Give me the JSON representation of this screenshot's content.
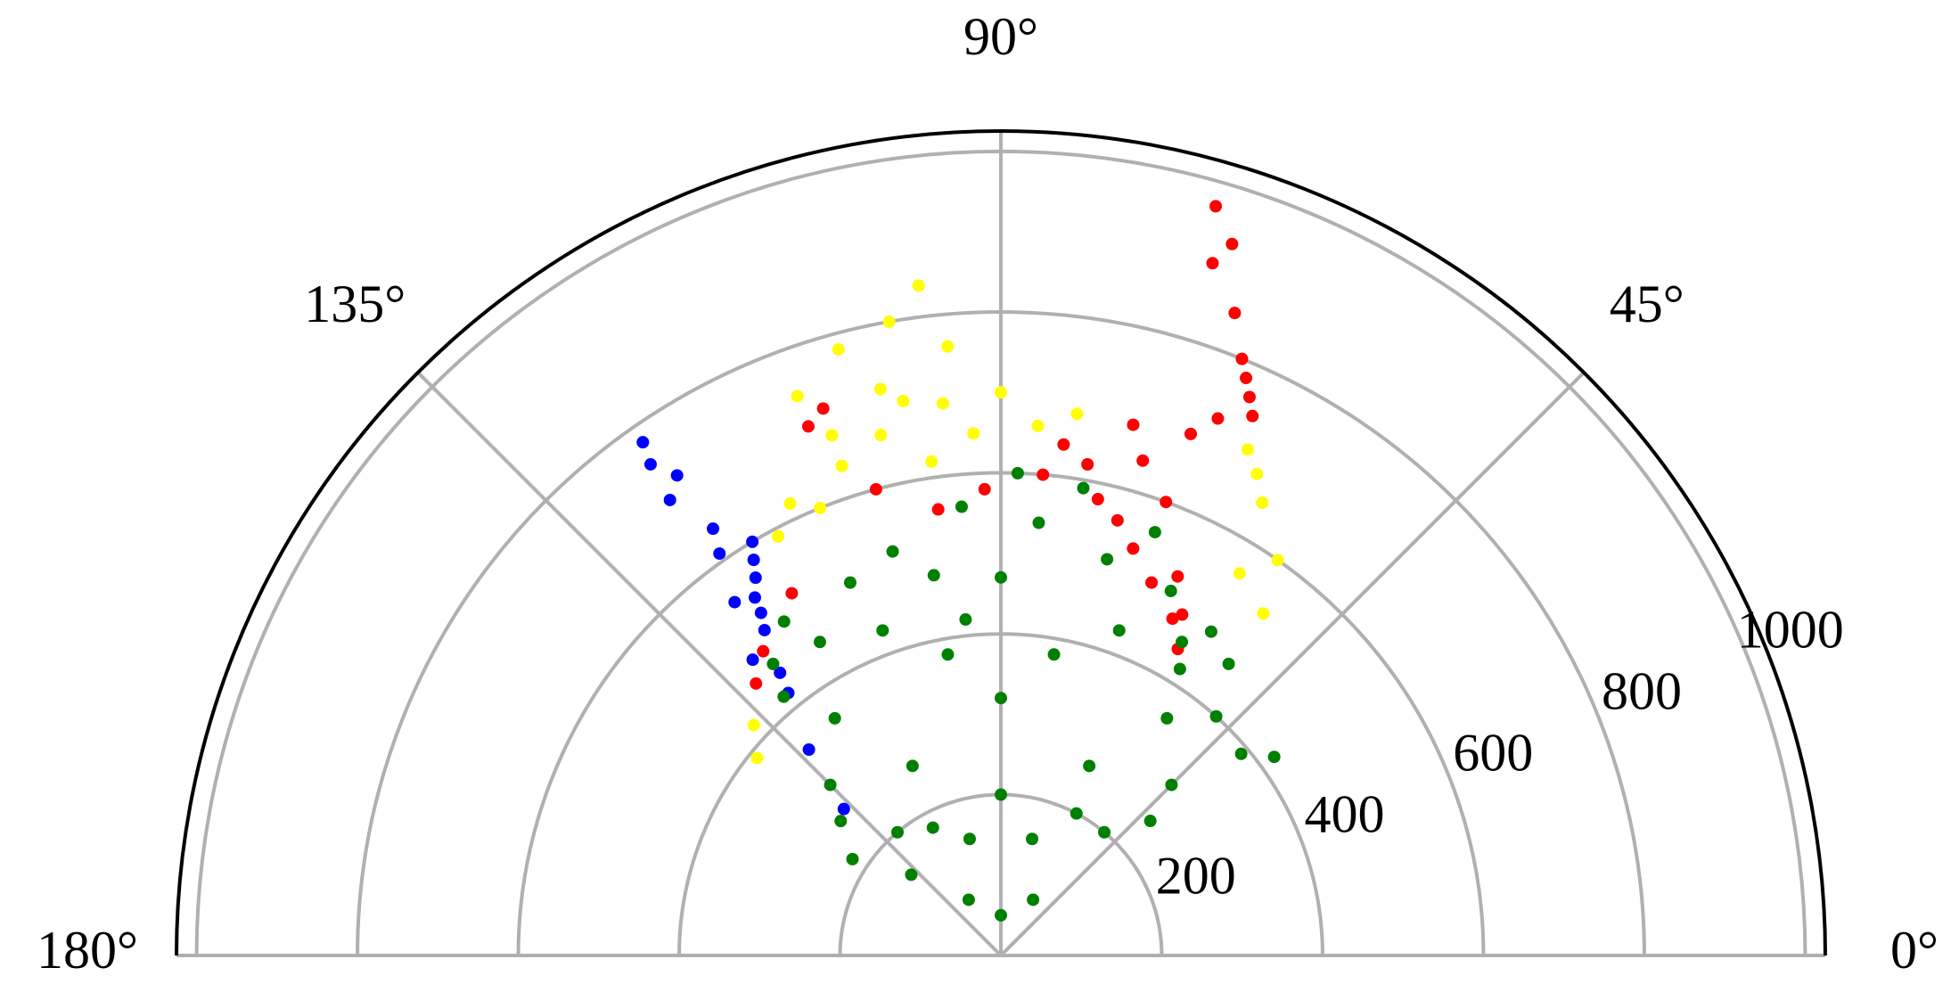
{
  "chart_data": {
    "type": "scatter",
    "polar": true,
    "grid": true,
    "thetalim": [
      0,
      180
    ],
    "rlim": [
      0,
      1025
    ],
    "thetaticks": [
      {
        "value": 0,
        "label": "0°"
      },
      {
        "value": 45,
        "label": "45°"
      },
      {
        "value": 90,
        "label": "90°"
      },
      {
        "value": 135,
        "label": "135°"
      },
      {
        "value": 180,
        "label": "180°"
      }
    ],
    "rticks": [
      200,
      400,
      600,
      800,
      1000
    ],
    "series": [
      {
        "color": "#ffff00",
        "theta": [
          97,
          103,
          100,
          95,
          105,
          110,
          93,
          98,
          108,
          115,
          100,
          90,
          86,
          82,
          62,
          60,
          64,
          52.5,
          55,
          58,
          141,
          137,
          112,
          102,
          96,
          108,
          118
        ],
        "r": [
          839,
          664,
          700,
          760,
          780,
          740,
          650,
          620,
          640,
          620,
          800,
          700,
          660,
          680,
          678,
          650,
          700,
          536,
          600,
          560,
          390,
          420,
          600,
          720,
          690,
          680,
          590
        ]
      },
      {
        "color": "#ff0000",
        "theta": [
          72,
          75,
          70,
          78,
          68,
          65,
          62,
          80,
          74,
          70,
          68,
          67,
          68,
          70,
          73,
          74,
          72,
          66,
          65,
          85,
          92,
          98,
          108,
          110,
          132,
          128,
          105,
          60,
          76,
          83,
          63,
          120
        ],
        "r": [
          532,
          560,
          600,
          580,
          500,
          520,
          480,
          620,
          640,
          690,
          720,
          780,
          800,
          850,
          900,
          969,
          930,
          760,
          740,
          600,
          580,
          560,
          715,
          700,
          455,
          480,
          600,
          440,
          680,
          640,
          470,
          520
        ]
      },
      {
        "color": "#0000ff",
        "theta": [
          124.9,
          125.5,
          124,
          126,
          124.5,
          123,
          125,
          126,
          122,
          127,
          128,
          130,
          129,
          137,
          133,
          124,
          125,
          121
        ],
        "r": [
          778,
          750,
          720,
          700,
          540,
          560,
          520,
          500,
          580,
          550,
          446,
          480,
          420,
          267,
          350,
          640,
          610,
          600
        ]
      },
      {
        "color": "#008000",
        "theta": [
          90,
          60,
          120,
          75,
          105,
          50,
          130,
          90,
          65,
          115,
          45,
          135,
          90,
          80,
          100,
          55,
          125,
          70,
          110,
          90,
          60,
          120,
          85,
          95,
          75,
          105,
          48,
          40,
          36,
          140,
          147,
          123,
          130,
          65,
          112,
          100,
          80,
          88,
          70,
          57,
          52,
          62,
          118,
          42,
          138,
          58,
          128,
          96
        ],
        "r": [
          50,
          80,
          80,
          150,
          150,
          200,
          200,
          200,
          260,
          260,
          300,
          300,
          320,
          380,
          380,
          360,
          360,
          430,
          430,
          470,
          450,
          450,
          540,
          560,
          510,
          520,
          400,
          390,
          420,
          260,
          220,
          495,
          420,
          500,
          500,
          480,
          590,
          600,
          560,
          480,
          460,
          200,
          180,
          250,
          150,
          420,
          460,
          420
        ]
      }
    ]
  }
}
